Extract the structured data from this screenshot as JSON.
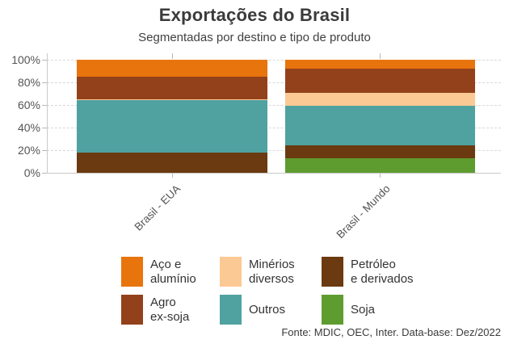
{
  "chart_data": {
    "type": "bar",
    "stacked": true,
    "title": "Exportações do Brasil",
    "subtitle": "Segmentadas por destino e tipo de produto",
    "unit": "%",
    "categories": [
      "Brasil - EUA",
      "Brasil - Mundo"
    ],
    "stack_order_bottom_to_top": [
      "Soja",
      "Petróleo e derivados",
      "Outros",
      "Minérios diversos",
      "Agro ex-soja",
      "Aço e alumínio"
    ],
    "series": [
      {
        "name": "Aço e alumínio",
        "color": "#E8740D",
        "values": [
          15,
          8
        ]
      },
      {
        "name": "Minérios diversos",
        "color": "#FBC994",
        "values": [
          1,
          12
        ]
      },
      {
        "name": "Petróleo e derivados",
        "color": "#6B3A10",
        "values": [
          18,
          11
        ]
      },
      {
        "name": "Agro ex-soja",
        "color": "#93411B",
        "values": [
          20,
          21
        ]
      },
      {
        "name": "Outros",
        "color": "#4FA2A0",
        "values": [
          46,
          35
        ]
      },
      {
        "name": "Soja",
        "color": "#5F9C30",
        "values": [
          0,
          13
        ]
      }
    ],
    "y_ticks": [
      "0%",
      "20%",
      "40%",
      "60%",
      "80%",
      "100%"
    ],
    "ylim": [
      0,
      100
    ],
    "grid": "dashed-horizontal",
    "legend_position": "bottom"
  },
  "legend": {
    "items": [
      {
        "label": "Aço e\nalumínio",
        "color": "#E8740D"
      },
      {
        "label": "Minérios\ndiversos",
        "color": "#FBC994"
      },
      {
        "label": "Petróleo\ne derivados",
        "color": "#6B3A10"
      },
      {
        "label": "Agro\nex-soja",
        "color": "#93411B"
      },
      {
        "label": "Outros",
        "color": "#4FA2A0"
      },
      {
        "label": "Soja",
        "color": "#5F9C30"
      }
    ]
  },
  "footer": {
    "source": "Fonte: MDIC, OEC, Inter. Data-base: Dez/2022"
  }
}
